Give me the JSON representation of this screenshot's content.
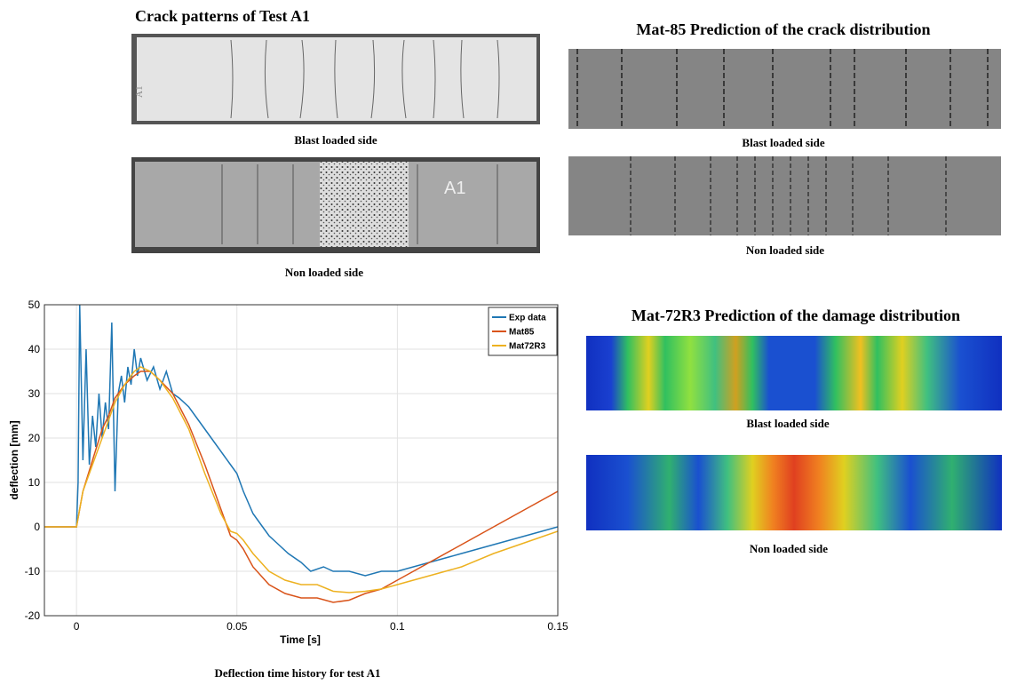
{
  "panels": {
    "crack_title": "Crack patterns of Test A1",
    "photo_blast_caption": "Blast loaded side",
    "photo_non_caption": "Non loaded side",
    "photo_marker_top": "A1",
    "photo_marker_bottom": "A1",
    "mat85_title": "Mat-85 Prediction of the crack distribution",
    "mat85_blast_caption": "Blast loaded side",
    "mat85_non_caption": "Non loaded side",
    "mat72_title": "Mat-72R3 Prediction of the damage distribution",
    "mat72_blast_caption": "Blast loaded side",
    "mat72_non_caption": "Non loaded side"
  },
  "caption": "Deflection time history for test A1",
  "chart_data": {
    "type": "line",
    "x_label": "Time [s]",
    "y_label": "deflection [mm]",
    "xlim": [
      -0.01,
      0.15
    ],
    "ylim": [
      -20,
      50
    ],
    "xticks": [
      0,
      0.05,
      0.1,
      0.15
    ],
    "yticks": [
      -20,
      -10,
      0,
      10,
      20,
      30,
      40,
      50
    ],
    "grid": true,
    "legend": "top-right",
    "series": [
      {
        "name": "Exp data",
        "color": "#1f77b4",
        "x": [
          -0.01,
          0,
          0.0005,
          0.001,
          0.002,
          0.003,
          0.004,
          0.005,
          0.006,
          0.007,
          0.008,
          0.009,
          0.01,
          0.011,
          0.012,
          0.013,
          0.014,
          0.015,
          0.016,
          0.017,
          0.018,
          0.019,
          0.02,
          0.022,
          0.024,
          0.026,
          0.028,
          0.03,
          0.032,
          0.035,
          0.038,
          0.04,
          0.043,
          0.046,
          0.048,
          0.05,
          0.052,
          0.055,
          0.058,
          0.06,
          0.063,
          0.066,
          0.07,
          0.073,
          0.077,
          0.08,
          0.085,
          0.09,
          0.095,
          0.1,
          0.105,
          0.11,
          0.115,
          0.12,
          0.125,
          0.13,
          0.135,
          0.14,
          0.145,
          0.15
        ],
        "values": [
          0,
          0,
          10,
          50,
          15,
          40,
          14,
          25,
          18,
          30,
          20,
          28,
          22,
          46,
          8,
          30,
          34,
          28,
          36,
          32,
          40,
          34,
          38,
          33,
          36,
          31,
          35,
          30,
          29,
          27,
          24,
          22,
          19,
          16,
          14,
          12,
          8,
          3,
          0,
          -2,
          -4,
          -6,
          -8,
          -10,
          -9,
          -10,
          -10,
          -11,
          -10,
          -10,
          -9,
          -8,
          -7,
          -6,
          -5,
          -4,
          -3,
          -2,
          -1,
          0
        ]
      },
      {
        "name": "Mat85",
        "color": "#d95319",
        "x": [
          -0.01,
          0,
          0.002,
          0.005,
          0.008,
          0.01,
          0.012,
          0.015,
          0.018,
          0.02,
          0.023,
          0.026,
          0.03,
          0.035,
          0.04,
          0.045,
          0.048,
          0.05,
          0.052,
          0.055,
          0.06,
          0.065,
          0.07,
          0.075,
          0.08,
          0.085,
          0.09,
          0.095,
          0.1,
          0.105,
          0.11,
          0.12,
          0.13,
          0.14,
          0.15
        ],
        "values": [
          0,
          0,
          8,
          15,
          22,
          25,
          29,
          32,
          34,
          35,
          35,
          33,
          30,
          23,
          14,
          4,
          -2,
          -3,
          -5,
          -9,
          -13,
          -15,
          -16,
          -16,
          -17,
          -16.5,
          -15,
          -14,
          -12,
          -10,
          -8,
          -4,
          0,
          4,
          8
        ]
      },
      {
        "name": "Mat72R3",
        "color": "#edb120",
        "x": [
          -0.01,
          0,
          0.002,
          0.005,
          0.008,
          0.01,
          0.012,
          0.015,
          0.018,
          0.02,
          0.023,
          0.026,
          0.03,
          0.035,
          0.04,
          0.045,
          0.048,
          0.05,
          0.052,
          0.055,
          0.06,
          0.065,
          0.07,
          0.075,
          0.08,
          0.085,
          0.09,
          0.095,
          0.1,
          0.11,
          0.12,
          0.13,
          0.14,
          0.15
        ],
        "values": [
          0,
          0,
          8,
          14,
          20,
          24,
          28,
          32,
          35,
          36,
          35,
          33,
          29,
          22,
          12,
          3,
          -1,
          -1.5,
          -3,
          -6,
          -10,
          -12,
          -13,
          -13,
          -14.5,
          -14.8,
          -14.5,
          -14,
          -13,
          -11,
          -9,
          -6,
          -3.5,
          -1
        ]
      }
    ]
  }
}
